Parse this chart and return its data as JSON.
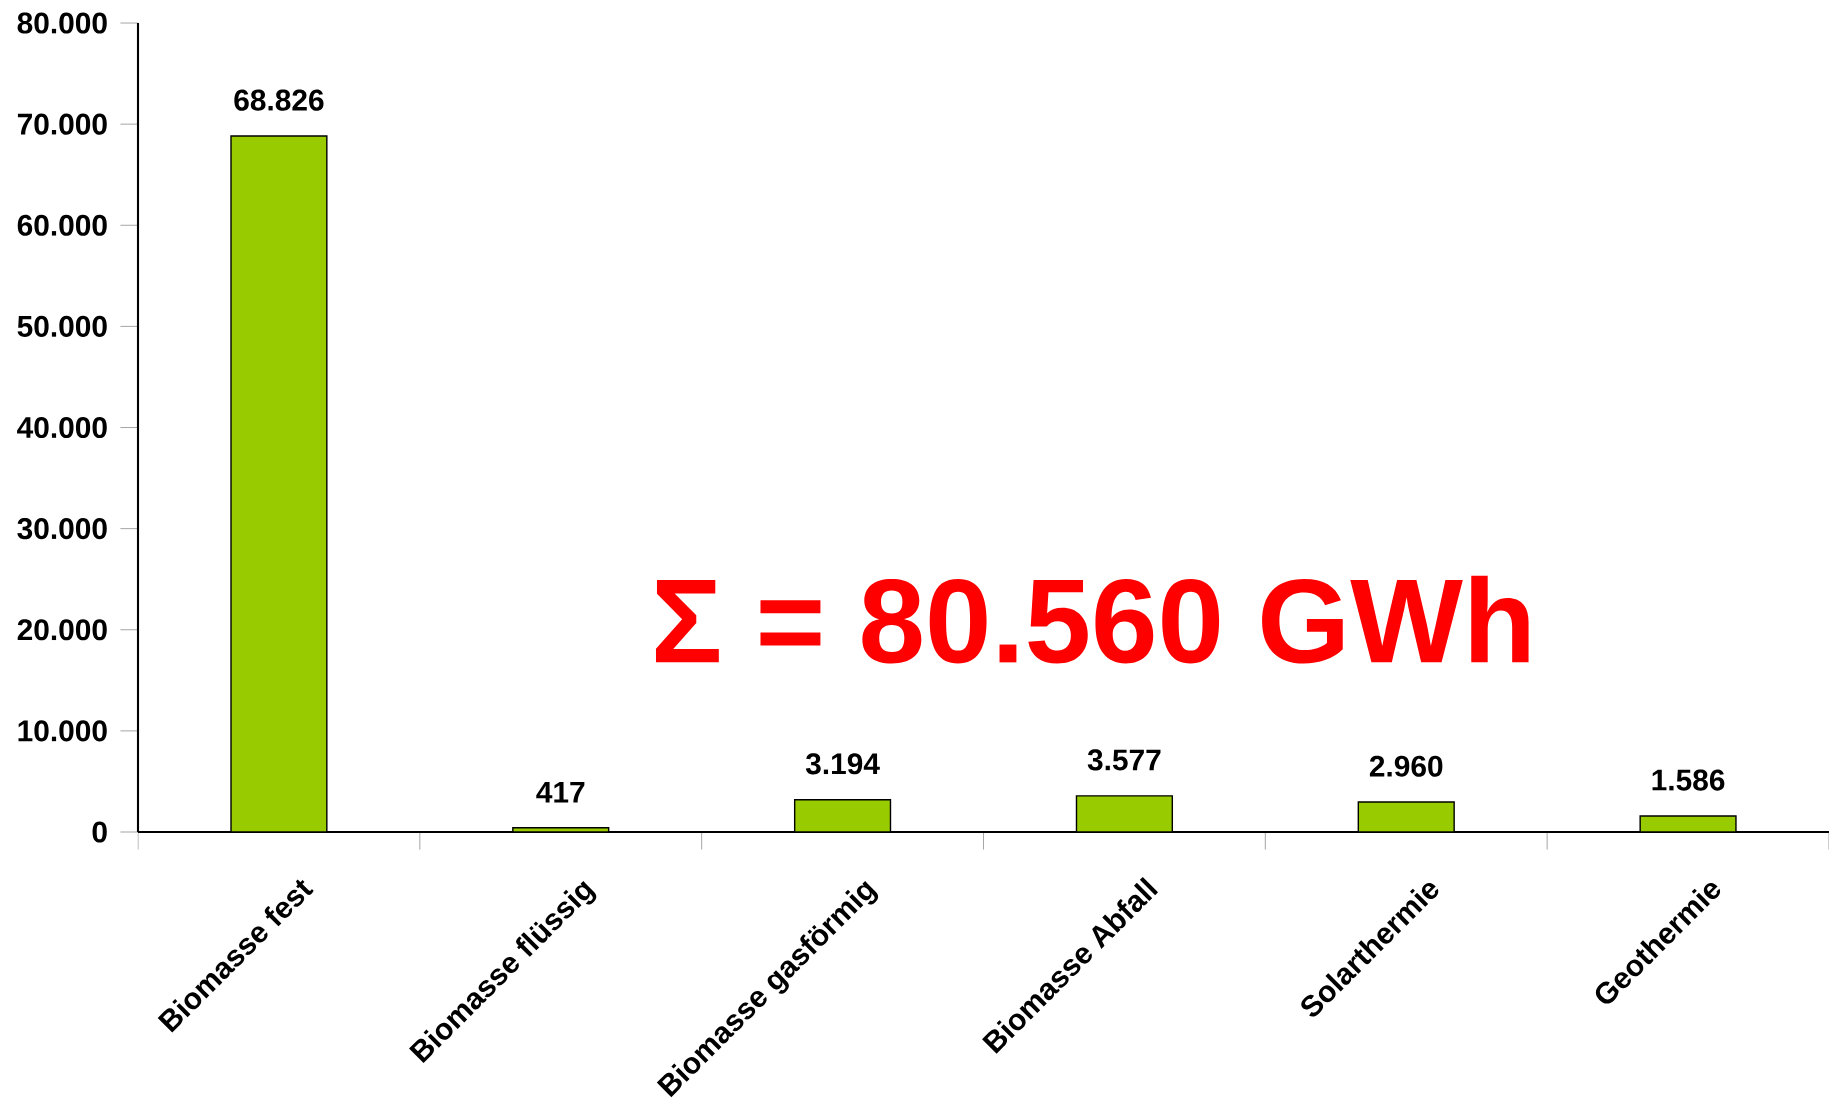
{
  "chart_data": {
    "type": "bar",
    "categories": [
      "Biomasse fest",
      "Biomasse flüssig",
      "Biomasse gasförmig",
      "Biomasse Abfall",
      "Solarthermie",
      "Geothermie"
    ],
    "values": [
      68826,
      417,
      3194,
      3577,
      2960,
      1586
    ],
    "value_labels": [
      "68.826",
      "417",
      "3.194",
      "3.577",
      "2.960",
      "1.586"
    ],
    "color": "#99cc00",
    "ylim": [
      0,
      80000
    ],
    "yticks": [
      {
        "value": 0,
        "label": "0"
      },
      {
        "value": 10000,
        "label": "10.000"
      },
      {
        "value": 20000,
        "label": "20.000"
      },
      {
        "value": 30000,
        "label": "30.000"
      },
      {
        "value": 40000,
        "label": "40.000"
      },
      {
        "value": 50000,
        "label": "50.000"
      },
      {
        "value": 60000,
        "label": "60.000"
      },
      {
        "value": 70000,
        "label": "70.000"
      },
      {
        "value": 80000,
        "label": "80.000"
      }
    ],
    "annotations": [
      "Σ = 80.560 GWh"
    ],
    "grid": false
  }
}
